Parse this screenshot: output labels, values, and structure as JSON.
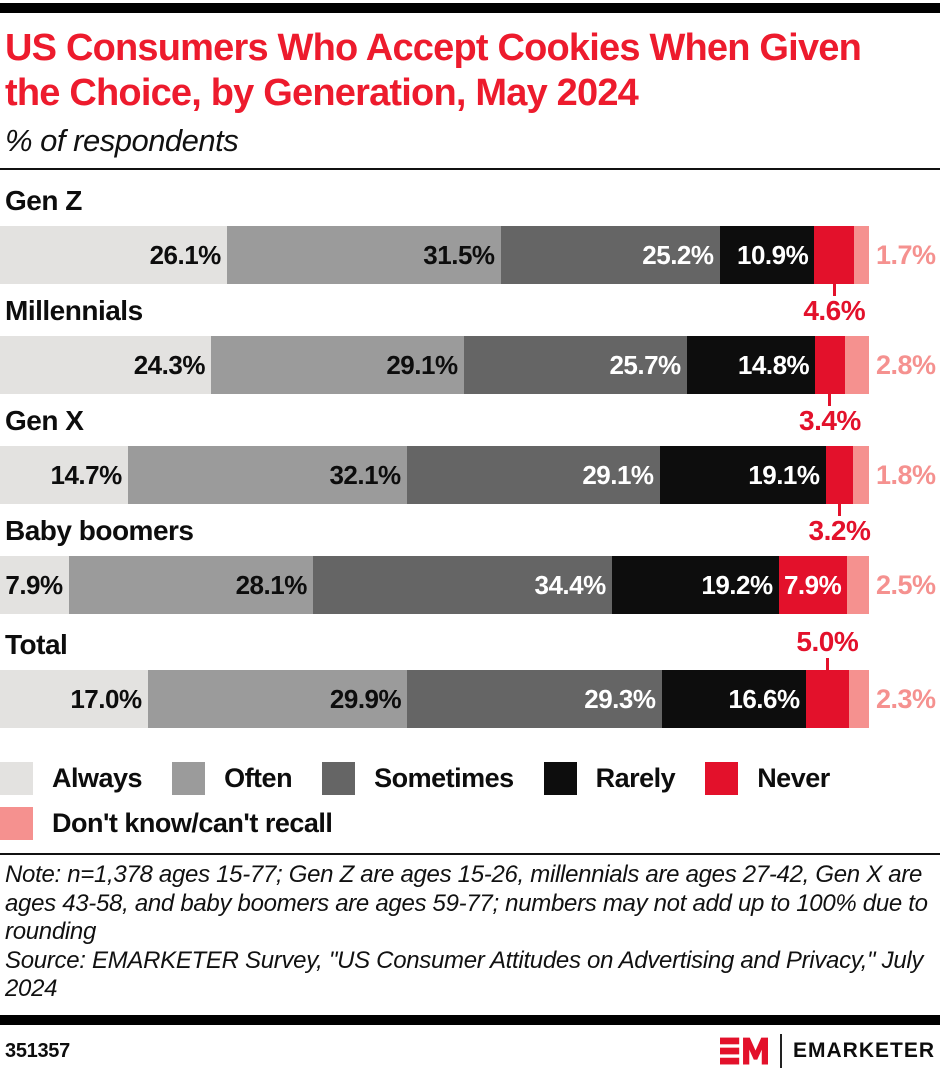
{
  "header": {
    "title": "US Consumers Who Accept Cookies When Given the Choice, by Generation, May 2024",
    "subtitle": "% of respondents"
  },
  "chart_data": {
    "type": "bar",
    "stacked": true,
    "orientation": "horizontal",
    "value_unit": "%",
    "value_range": [
      0,
      100
    ],
    "grid": false,
    "legend_position": "bottom",
    "title": "US Consumers Who Accept Cookies When Given the Choice, by Generation, May 2024",
    "xlabel": "",
    "ylabel": "",
    "categories": [
      "Gen Z",
      "Millennials",
      "Gen X",
      "Baby boomers",
      "Total"
    ],
    "series": [
      {
        "name": "Always",
        "color": "#e3e2e0",
        "label_color": "#0d0d0d",
        "values": [
          26.1,
          24.3,
          14.7,
          7.9,
          17.0
        ]
      },
      {
        "name": "Often",
        "color": "#9b9b9b",
        "label_color": "#0d0d0d",
        "values": [
          31.5,
          29.1,
          32.1,
          28.1,
          29.9
        ]
      },
      {
        "name": "Sometimes",
        "color": "#656565",
        "label_color": "#ffffff",
        "values": [
          25.2,
          25.7,
          29.1,
          34.4,
          29.3
        ]
      },
      {
        "name": "Rarely",
        "color": "#0d0d0d",
        "label_color": "#ffffff",
        "values": [
          10.9,
          14.8,
          19.1,
          19.2,
          16.6
        ]
      },
      {
        "name": "Never",
        "color": "#e3112b",
        "label_color": "#ffffff",
        "values": [
          4.6,
          3.4,
          3.2,
          7.9,
          5.0
        ]
      },
      {
        "name": "Don't know/can't recall",
        "color": "#f5918f",
        "label_color": "#f5918f",
        "values": [
          1.7,
          2.8,
          1.8,
          2.5,
          2.3
        ]
      }
    ],
    "never_label_position": [
      "below",
      "below",
      "below",
      "inside",
      "above"
    ],
    "annotation_color": "#e3112b"
  },
  "notes": {
    "note": "Note: n=1,378 ages 15-77; Gen Z are ages 15-26, millennials are ages 27-42, Gen X are ages 43-58, and baby boomers are ages 59-77; numbers may not add up to 100% due to rounding",
    "source": "Source: EMARKETER Survey, \"US Consumer Attitudes on Advertising and Privacy,\" July 2024"
  },
  "footer": {
    "chart_id": "351357",
    "brand_name": "EMARKETER",
    "logo": "em-logo",
    "logo_color": "#e3112b"
  }
}
